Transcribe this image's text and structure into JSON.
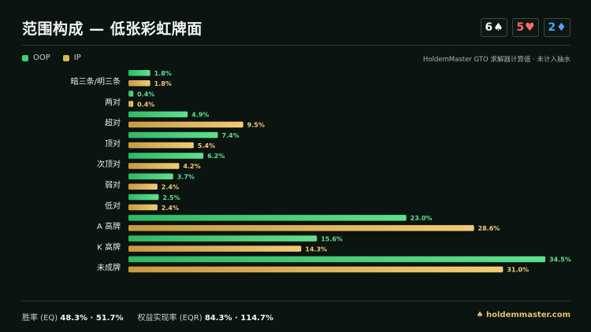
{
  "header": {
    "title": "范围构成 — 低张彩虹牌面",
    "cards": [
      {
        "rank": "6",
        "suit": "♠",
        "color": "#f2f4f3"
      },
      {
        "rank": "5",
        "suit": "♥",
        "color": "#ff6b6b"
      },
      {
        "rank": "2",
        "suit": "♦",
        "color": "#4fa3ff"
      }
    ]
  },
  "legend": {
    "oop_label": "OOP",
    "ip_label": "IP",
    "oop_color": "#3ccf78",
    "ip_color": "#e0b45c"
  },
  "source": "HoldemMaster GTO 求解器计算值 · 未计入抽水",
  "chart_data": {
    "type": "bar",
    "orientation": "horizontal",
    "categories": [
      "暗三条/明三条",
      "两对",
      "超对",
      "顶对",
      "次顶对",
      "弱对",
      "低对",
      "A 高牌",
      "K 高牌",
      "未成牌"
    ],
    "series": [
      {
        "name": "OOP",
        "values": [
          1.8,
          0.4,
          4.9,
          7.4,
          6.2,
          3.7,
          2.5,
          23.0,
          15.6,
          34.5
        ],
        "color": "#3ccf78"
      },
      {
        "name": "IP",
        "values": [
          1.8,
          0.4,
          9.5,
          5.4,
          4.2,
          2.4,
          2.4,
          28.6,
          14.3,
          31.0
        ],
        "color": "#e0b45c"
      }
    ],
    "value_suffix": "%",
    "xlim": [
      0,
      34.5
    ]
  },
  "footer": {
    "equity_label": "胜率 (EQ)",
    "equity_values": "48.3% · 51.7%",
    "eqr_label": "权益实现率 (EQR)",
    "eqr_values": "84.3% · 114.7%",
    "brand_icon": "♠",
    "brand": "holdemmaster.com"
  }
}
